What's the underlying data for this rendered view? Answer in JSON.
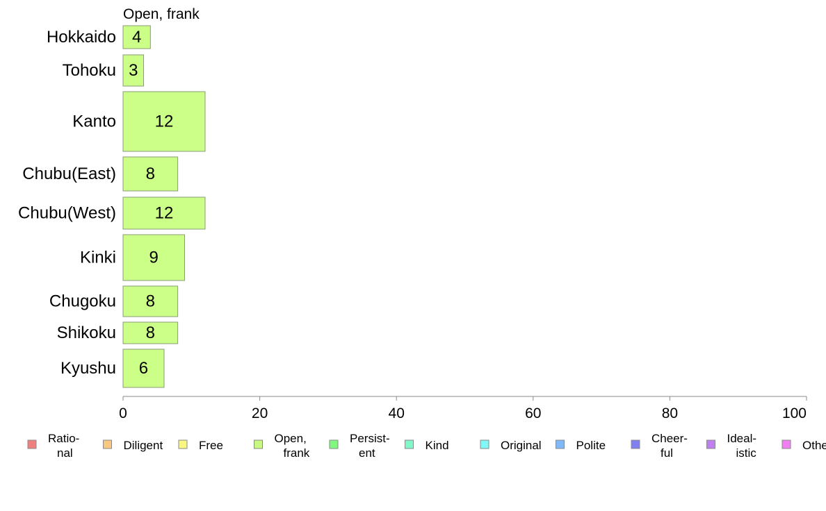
{
  "chart_data": {
    "type": "bar",
    "orientation": "horizontal",
    "panel_title": "Open, frank",
    "categories": [
      "Hokkaido",
      "Tohoku",
      "Kanto",
      "Chubu(East)",
      "Chubu(West)",
      "Kinki",
      "Chugoku",
      "Shikoku",
      "Kyushu"
    ],
    "series": [
      {
        "name": "Open, frank",
        "color": "#ccff88",
        "values": [
          4,
          3,
          12,
          8,
          12,
          9,
          8,
          8,
          6
        ],
        "labels": [
          "4",
          "3",
          "12",
          "8",
          "12",
          "9",
          "8",
          "8",
          "6"
        ]
      }
    ],
    "xlim": [
      0,
      100
    ],
    "xticks": [
      "0",
      "20",
      "40",
      "60",
      "80",
      "100"
    ],
    "grid": false,
    "legend_position": "bottom",
    "legend": [
      {
        "label": "Ratio-\nnal",
        "color": "#f08080"
      },
      {
        "label": "Diligent",
        "color": "#f8c880"
      },
      {
        "label": "Free",
        "color": "#f8f880"
      },
      {
        "label": "Open,\nfrank",
        "color": "#c8f880"
      },
      {
        "label": "Persist-\nent",
        "color": "#80f880"
      },
      {
        "label": "Kind",
        "color": "#80f8c8"
      },
      {
        "label": "Original",
        "color": "#80f8f8"
      },
      {
        "label": "Polite",
        "color": "#80b8f8"
      },
      {
        "label": "Cheer-\nful",
        "color": "#8080f0"
      },
      {
        "label": "Ideal-\nistic",
        "color": "#c080f0"
      },
      {
        "label": "Other",
        "color": "#f080f0"
      }
    ]
  }
}
